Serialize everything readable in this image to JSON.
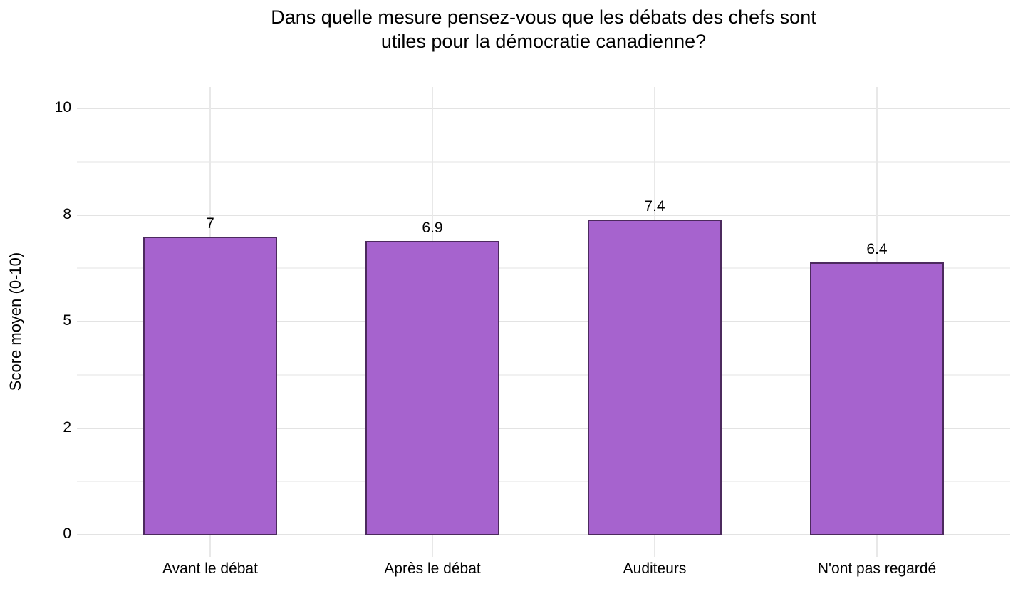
{
  "chart_data": {
    "type": "bar",
    "title": "Dans quelle mesure pensez-vous que les débats des chefs sont utiles pour la démocratie canadienne?",
    "title_lines": [
      "Dans quelle mesure pensez-vous que les débats des chefs sont",
      "utiles pour la démocratie canadienne?"
    ],
    "xlabel": "",
    "ylabel": "Score moyen (0-10)",
    "categories": [
      "Avant le débat",
      "Après le débat",
      "Auditeurs",
      "N'ont pas regardé"
    ],
    "values": [
      7,
      6.9,
      7.4,
      6.4
    ],
    "value_labels": [
      "7",
      "6.9",
      "7.4",
      "6.4"
    ],
    "ylim": [
      0,
      10
    ],
    "yticks": [
      {
        "label": "10",
        "value": 10
      },
      {
        "label": "8",
        "value": 7.5
      },
      {
        "label": "5",
        "value": 5
      },
      {
        "label": "2",
        "value": 2.5
      },
      {
        "label": "0",
        "value": 0
      }
    ],
    "grid": true,
    "legend_position": "none",
    "colors": {
      "bar_fill": "#a663ce",
      "bar_stroke": "#4c2a5e",
      "gridline_major": "#e3e3e3",
      "gridline_minor": "#f1f1f1",
      "background": "#ffffff",
      "text": "#000000"
    }
  }
}
